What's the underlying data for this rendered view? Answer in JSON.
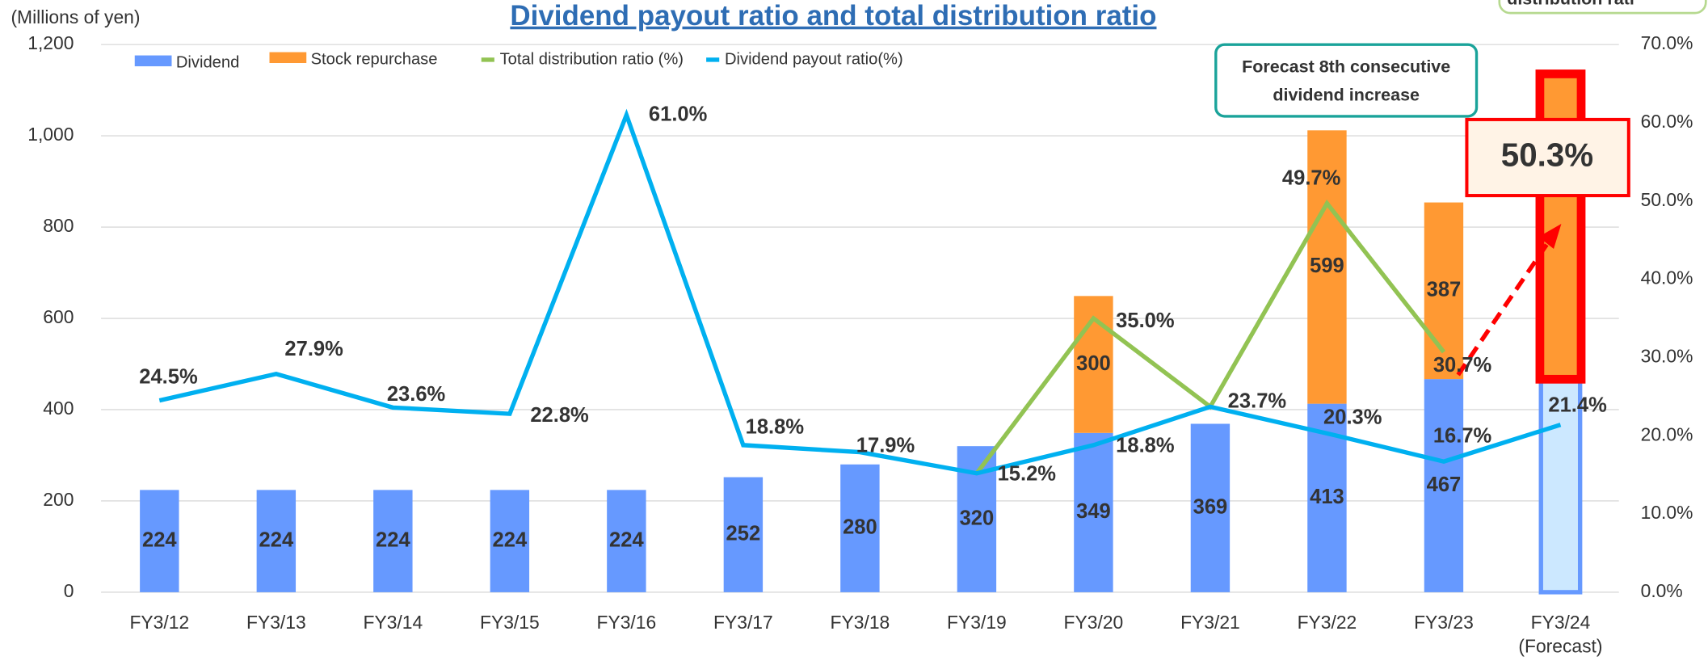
{
  "chart_data": {
    "type": "bar",
    "title": "Dividend payout ratio and total distribution ratio",
    "y_axis_label": "(Millions of yen)",
    "categories": [
      "FY3/12",
      "FY3/13",
      "FY3/14",
      "FY3/15",
      "FY3/16",
      "FY3/17",
      "FY3/18",
      "FY3/19",
      "FY3/20",
      "FY3/21",
      "FY3/22",
      "FY3/23",
      "FY3/24 (Forecast)"
    ],
    "series": [
      {
        "name": "Dividend",
        "color": "#6699ff",
        "values": [
          224,
          224,
          224,
          224,
          224,
          252,
          280,
          320,
          349,
          369,
          413,
          467,
          467
        ],
        "value_labels": [
          "224",
          "224",
          "224",
          "224",
          "224",
          "252",
          "280",
          "320",
          "349",
          "369",
          "413",
          "467",
          null
        ]
      },
      {
        "name": "Stock repurchase",
        "color": "#ff9933",
        "values": [
          null,
          null,
          null,
          null,
          null,
          null,
          null,
          null,
          300,
          null,
          599,
          387,
          660
        ],
        "value_labels": [
          null,
          null,
          null,
          null,
          null,
          null,
          null,
          null,
          "300",
          null,
          "599",
          "387",
          null
        ]
      },
      {
        "name": "Total distribution ratio (%)",
        "color": "#92c353",
        "axis": "y2",
        "values": [
          null,
          null,
          null,
          null,
          null,
          null,
          null,
          15.2,
          35.0,
          23.7,
          49.7,
          30.7,
          null
        ],
        "value_labels": [
          null,
          null,
          null,
          null,
          null,
          null,
          null,
          null,
          "35.0%",
          null,
          "49.7%",
          "30.7%",
          null
        ]
      },
      {
        "name": "Dividend payout ratio(%)",
        "color": "#00b0f0",
        "axis": "y2",
        "values": [
          24.5,
          27.9,
          23.6,
          22.8,
          61.0,
          18.8,
          17.9,
          15.2,
          18.8,
          23.7,
          20.3,
          16.7,
          21.4
        ],
        "value_labels": [
          "24.5%",
          "27.9%",
          "23.6%",
          "22.8%",
          "61.0%",
          "18.8%",
          "17.9%",
          "15.2%",
          "18.8%",
          "23.7%",
          "20.3%",
          "16.7%",
          "21.4%"
        ]
      }
    ],
    "ylim": [
      0,
      1200
    ],
    "yticks": [
      0,
      200,
      400,
      600,
      800,
      {
        "value": 1000,
        "label": "1,000"
      },
      {
        "value": 1200,
        "label": "1,200"
      }
    ],
    "y2lim": [
      0,
      70
    ],
    "y2ticks": [
      {
        "value": 0,
        "label": "0.0%"
      },
      {
        "value": 10,
        "label": "10.0%"
      },
      {
        "value": 20,
        "label": "20.0%"
      },
      {
        "value": 30,
        "label": "30.0%"
      },
      {
        "value": 40,
        "label": "40.0%"
      },
      {
        "value": 50,
        "label": "50.0%"
      },
      {
        "value": 60,
        "label": "60.0%"
      },
      {
        "value": 70,
        "label": "70.0%"
      }
    ],
    "grid": true,
    "annotations": [
      "Forecast 8th consecutive dividend increase",
      "50.3%",
      "distribution rati"
    ]
  }
}
